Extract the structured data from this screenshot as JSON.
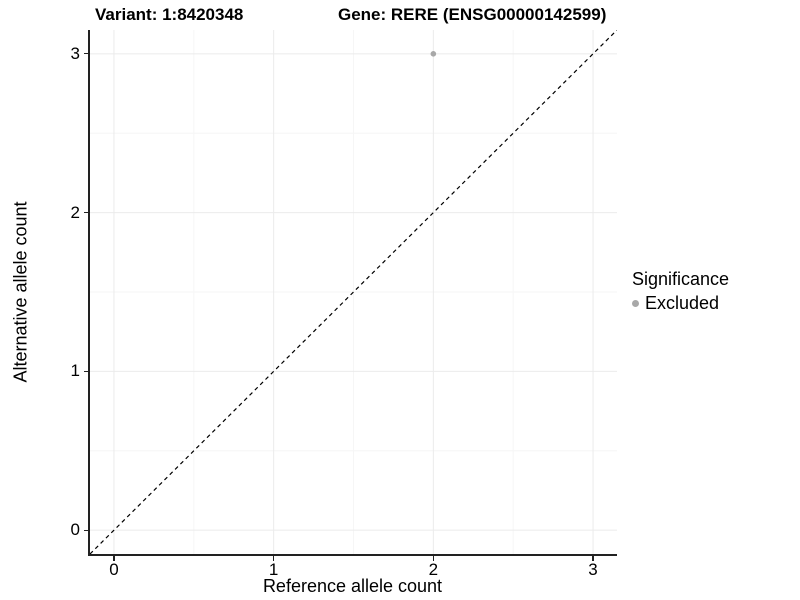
{
  "header": {
    "variant_label": "Variant: 1:8420348",
    "gene_label": "Gene: RERE (ENSG00000142599)"
  },
  "colors": {
    "background": "#ffffff",
    "grid_major": "#ebebeb",
    "grid_minor": "#f6f6f6",
    "axis_line": "#222222",
    "dashed_line": "#000000",
    "point": "#a8a8a8",
    "text": "#000000"
  },
  "chart_data": {
    "type": "scatter",
    "title": "Variant: 1:8420348    Gene: RERE (ENSG00000142599)",
    "xlabel": "Reference allele count",
    "ylabel": "Alternative allele count",
    "xlim": [
      -0.15,
      3.15
    ],
    "ylim": [
      -0.15,
      3.15
    ],
    "xticks": [
      0,
      1,
      2,
      3
    ],
    "yticks": [
      0,
      1,
      2,
      3
    ],
    "minor_gridlines_x": [
      0.5,
      1.5,
      2.5
    ],
    "minor_gridlines_y": [
      0.5,
      1.5,
      2.5
    ],
    "grid": true,
    "series": [
      {
        "name": "Excluded",
        "color": "#a8a8a8",
        "points": [
          {
            "x": 2,
            "y": 3
          }
        ]
      }
    ],
    "reference_line": {
      "type": "identity",
      "equation": "y = x",
      "style": "dashed",
      "color": "#000000"
    },
    "legend": {
      "title": "Significance",
      "position": "right",
      "entries": [
        {
          "label": "Excluded",
          "color": "#a8a8a8",
          "marker": "circle"
        }
      ]
    }
  }
}
